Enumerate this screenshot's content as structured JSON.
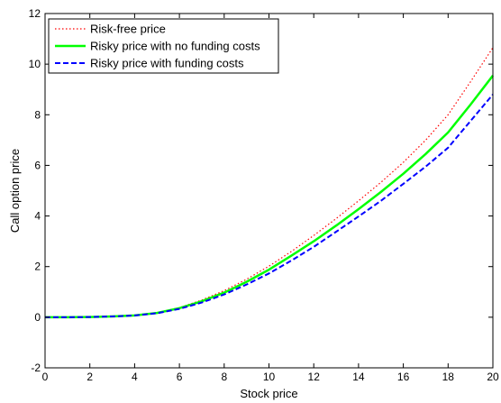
{
  "chart_data": {
    "type": "line",
    "title": "",
    "xlabel": "Stock price",
    "ylabel": "Call option price",
    "xlim": [
      0,
      20
    ],
    "ylim": [
      -2,
      12
    ],
    "xticks": [
      0,
      2,
      4,
      6,
      8,
      10,
      12,
      14,
      16,
      18,
      20
    ],
    "yticks": [
      -2,
      0,
      2,
      4,
      6,
      8,
      10,
      12
    ],
    "grid": false,
    "legend_position": "top-left",
    "series": [
      {
        "name": "Risk-free price",
        "color": "#ff0000",
        "style": "dotted",
        "x": [
          0,
          1,
          2,
          3,
          4,
          5,
          6,
          7,
          8,
          9,
          10,
          11,
          12,
          13,
          14,
          15,
          16,
          17,
          18,
          19,
          20
        ],
        "y": [
          0,
          0,
          0.01,
          0.03,
          0.08,
          0.18,
          0.38,
          0.68,
          1.05,
          1.5,
          2.02,
          2.6,
          3.23,
          3.9,
          4.6,
          5.33,
          6.12,
          7.0,
          8.0,
          9.3,
          10.65
        ]
      },
      {
        "name": "Risky price with no funding costs",
        "color": "#00ff00",
        "style": "solid",
        "x": [
          0,
          1,
          2,
          3,
          4,
          5,
          6,
          7,
          8,
          9,
          10,
          11,
          12,
          13,
          14,
          15,
          16,
          17,
          18,
          19,
          20
        ],
        "y": [
          0,
          0,
          0.01,
          0.03,
          0.07,
          0.17,
          0.36,
          0.63,
          0.97,
          1.4,
          1.88,
          2.43,
          3.0,
          3.62,
          4.27,
          4.95,
          5.67,
          6.45,
          7.3,
          8.4,
          9.55
        ]
      },
      {
        "name": "Risky price with funding costs",
        "color": "#0000ff",
        "style": "dashed",
        "x": [
          0,
          1,
          2,
          3,
          4,
          5,
          6,
          7,
          8,
          9,
          10,
          11,
          12,
          13,
          14,
          15,
          16,
          17,
          18,
          19,
          20
        ],
        "y": [
          0,
          0,
          0.01,
          0.03,
          0.07,
          0.16,
          0.33,
          0.58,
          0.9,
          1.29,
          1.73,
          2.24,
          2.78,
          3.38,
          3.98,
          4.6,
          5.27,
          5.95,
          6.7,
          7.75,
          8.8
        ]
      }
    ]
  }
}
